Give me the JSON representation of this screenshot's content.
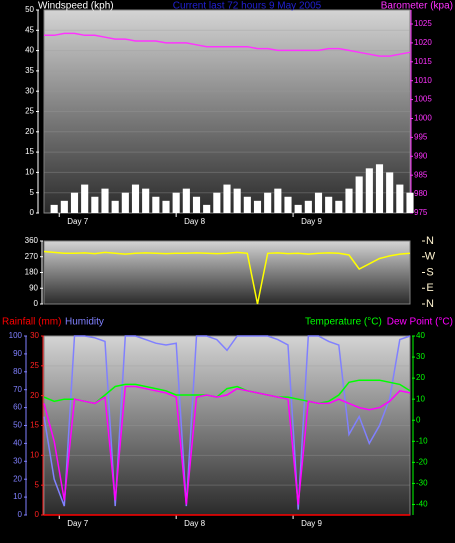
{
  "chart_data": [
    {
      "type": "combo",
      "title": "Current last 72 hours 9 May 2005",
      "x": [
        0,
        2,
        4,
        6,
        8,
        10,
        12,
        14,
        16,
        18,
        20,
        22,
        24,
        26,
        28,
        30,
        32,
        34,
        36,
        38,
        40,
        42,
        44,
        46,
        48,
        50,
        52,
        54,
        56,
        58,
        60,
        62,
        64,
        66,
        68,
        70,
        72
      ],
      "xlim": [
        0,
        72
      ],
      "xticks": [
        {
          "value": 3,
          "label": "Day 7"
        },
        {
          "value": 26,
          "label": "Day 8"
        },
        {
          "value": 49,
          "label": "Day 9"
        }
      ],
      "ylim": [
        0,
        50
      ],
      "yticks": [
        0,
        5,
        10,
        15,
        20,
        25,
        30,
        35,
        40,
        45,
        50
      ],
      "y2lim": [
        975,
        1028.7
      ],
      "y2ticks": [
        975,
        980,
        985,
        990,
        995,
        1000,
        1005,
        1010,
        1015,
        1020,
        1025
      ],
      "axis_colors": {
        "y": "#ffffff",
        "y2": "#ff33ff"
      },
      "grid": true,
      "series": [
        {
          "name": "Windspeed (kph)",
          "type": "bar",
          "color": "#ffffff",
          "axis": "y",
          "values": [
            0,
            2,
            3,
            5,
            7,
            4,
            6,
            3,
            5,
            7,
            6,
            4,
            3,
            5,
            6,
            4,
            2,
            5,
            7,
            6,
            4,
            3,
            5,
            6,
            4,
            2,
            3,
            5,
            4,
            3,
            6,
            9,
            11,
            12,
            10,
            7,
            5
          ]
        },
        {
          "name": "Barometer (kpa)",
          "type": "line",
          "color": "#ff33ff",
          "axis": "y2",
          "values": [
            1022,
            1022,
            1022.5,
            1022.5,
            1022,
            1022,
            1021.5,
            1021,
            1021,
            1020.5,
            1020.5,
            1020.5,
            1020,
            1020,
            1020,
            1019.5,
            1019,
            1019,
            1019,
            1019,
            1019,
            1018.5,
            1018.5,
            1018,
            1018,
            1018,
            1018,
            1018,
            1018.5,
            1018.5,
            1018,
            1017.5,
            1017,
            1016.5,
            1016.5,
            1017,
            1017.5
          ]
        }
      ]
    },
    {
      "type": "line",
      "x": [
        0,
        2,
        4,
        6,
        8,
        10,
        12,
        14,
        16,
        18,
        20,
        22,
        24,
        26,
        28,
        30,
        32,
        34,
        36,
        38,
        40,
        42,
        44,
        46,
        48,
        50,
        52,
        54,
        56,
        58,
        60,
        62,
        64,
        66,
        68,
        70,
        72
      ],
      "xlim": [
        0,
        72
      ],
      "ylim": [
        0,
        360
      ],
      "yticks": [
        0,
        90,
        180,
        270,
        360
      ],
      "y2lim": [
        0,
        360
      ],
      "y2ticks": [
        {
          "value": 0,
          "label": "N"
        },
        {
          "value": 90,
          "label": "E"
        },
        {
          "value": 180,
          "label": "S"
        },
        {
          "value": 270,
          "label": "W"
        },
        {
          "value": 360,
          "label": "N"
        }
      ],
      "axis_colors": {
        "y": "#ffffff",
        "y2": "#fff4d0"
      },
      "grid": false,
      "series": [
        {
          "color": "#ffff00",
          "axis": "y",
          "values": [
            300,
            295,
            290,
            290,
            292,
            288,
            295,
            290,
            285,
            290,
            292,
            290,
            288,
            290,
            290,
            292,
            290,
            288,
            290,
            295,
            290,
            0,
            290,
            292,
            288,
            290,
            285,
            290,
            292,
            290,
            280,
            200,
            230,
            260,
            275,
            285,
            290
          ]
        }
      ]
    },
    {
      "type": "line",
      "x": [
        0,
        2,
        4,
        6,
        8,
        10,
        12,
        14,
        16,
        18,
        20,
        22,
        24,
        26,
        28,
        30,
        32,
        34,
        36,
        38,
        40,
        42,
        44,
        46,
        48,
        50,
        52,
        54,
        56,
        58,
        60,
        62,
        64,
        66,
        68,
        70,
        72
      ],
      "xlim": [
        0,
        72
      ],
      "xticks": [
        {
          "value": 3,
          "label": "Day 7"
        },
        {
          "value": 26,
          "label": "Day 8"
        },
        {
          "value": 49,
          "label": "Day 9"
        }
      ],
      "ylim": [
        0,
        30
      ],
      "yticks": [
        0,
        5,
        10,
        15,
        20,
        25,
        30
      ],
      "y2lim": [
        -45,
        40
      ],
      "y2ticks": [
        -40,
        -30,
        -20,
        -10,
        0,
        10,
        20,
        30,
        40
      ],
      "y3lim": [
        0,
        100
      ],
      "y3ticks": [
        0,
        10,
        20,
        30,
        40,
        50,
        60,
        70,
        80,
        90,
        100
      ],
      "axis_colors": {
        "y": "#ff2020",
        "y2": "#00ff00",
        "y3": "#8080ff"
      },
      "grid": true,
      "series": [
        {
          "name": "Rainfall (mm)",
          "color": "#ff0000",
          "axis": "y",
          "values": [
            0,
            0,
            0,
            0,
            0,
            0,
            0,
            0,
            0,
            0,
            0,
            0,
            0,
            0,
            0,
            0,
            0,
            0,
            0,
            0,
            0,
            0,
            0,
            0,
            0,
            0,
            0,
            0,
            0,
            0,
            0,
            0,
            0,
            0,
            0,
            0,
            0
          ]
        },
        {
          "name": "Humidity",
          "color": "#8080ff",
          "axis": "y3",
          "values": [
            55,
            20,
            5,
            100,
            100,
            99,
            97,
            5,
            100,
            100,
            98,
            96,
            95,
            96,
            5,
            100,
            100,
            98,
            92,
            100,
            100,
            100,
            100,
            98,
            95,
            3,
            100,
            100,
            97,
            95,
            45,
            55,
            40,
            50,
            65,
            98,
            100
          ]
        },
        {
          "name": "Temperature (°C)",
          "color": "#00ff00",
          "axis": "y2",
          "values": [
            11,
            9,
            10,
            10,
            9,
            8,
            12,
            16,
            17,
            17,
            16,
            15,
            14,
            12,
            12,
            12,
            12,
            11,
            15,
            16,
            14,
            13,
            12,
            11,
            11,
            10,
            9,
            8,
            9,
            12,
            18,
            19,
            19,
            19,
            18,
            17,
            14
          ]
        },
        {
          "name": "Dew Point (°C)",
          "color": "#ff00ff",
          "axis": "y2",
          "values": [
            8,
            -10,
            -38,
            10,
            9,
            8,
            11,
            -38,
            16,
            16,
            15,
            14,
            13,
            11,
            -40,
            11,
            12,
            11,
            12,
            15,
            14,
            13,
            12,
            11,
            10,
            -40,
            9,
            8,
            8,
            10,
            8,
            6,
            5,
            6,
            9,
            14,
            13
          ]
        }
      ]
    }
  ]
}
